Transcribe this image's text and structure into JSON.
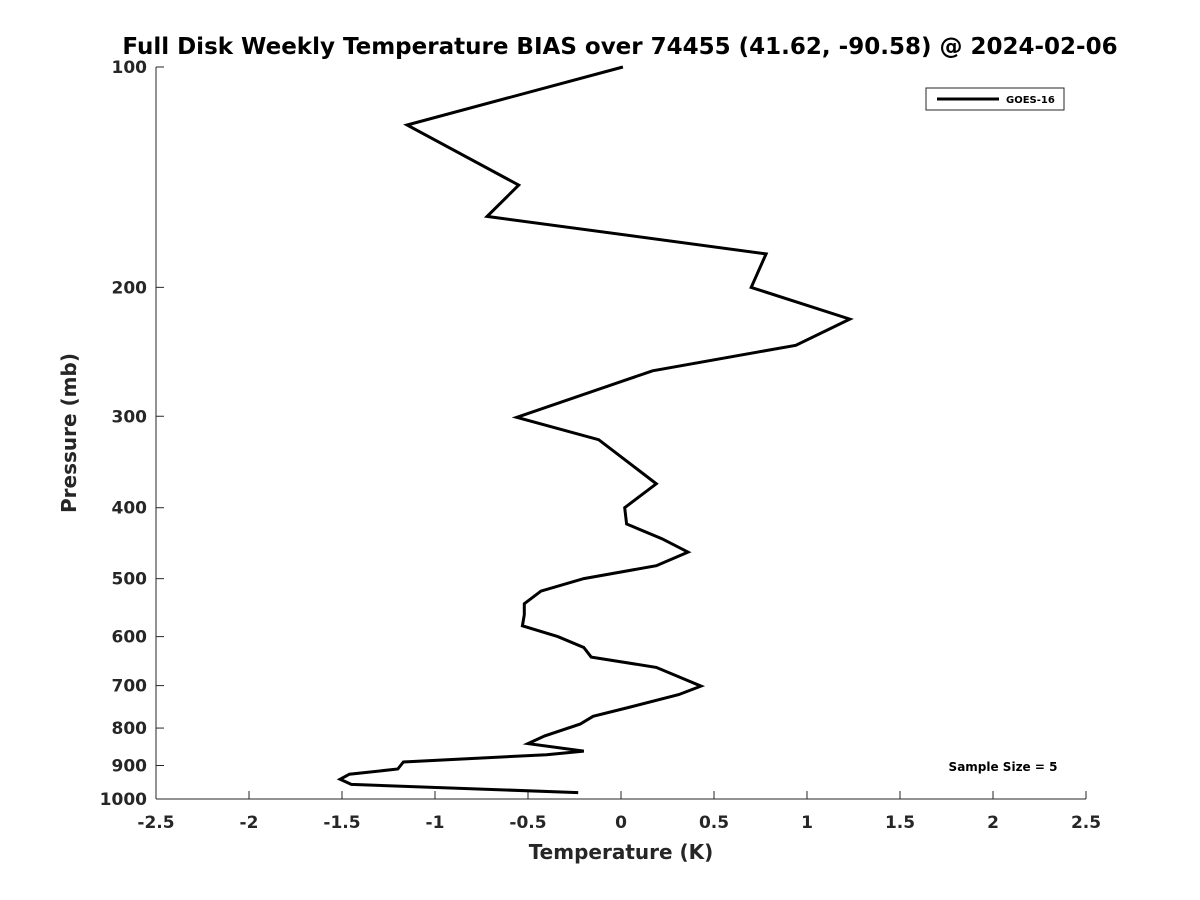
{
  "chart_data": {
    "type": "line",
    "title": "Full Disk Weekly Temperature BIAS over 74455 (41.62, -90.58) @ 2024-02-06",
    "xlabel": "Temperature (K)",
    "ylabel": "Pressure (mb)",
    "xlim": [
      -2.5,
      2.5
    ],
    "ylim": [
      100,
      1000
    ],
    "y_scale": "log",
    "y_reversed": true,
    "grid": false,
    "legend_position": "top-right",
    "x_ticks": [
      "-2.5",
      "-2",
      "-1.5",
      "-1",
      "-0.5",
      "0",
      "0.5",
      "1",
      "1.5",
      "2",
      "2.5"
    ],
    "x_tick_values": [
      -2.5,
      -2,
      -1.5,
      -1,
      -0.5,
      0,
      0.5,
      1,
      1.5,
      2,
      2.5
    ],
    "y_ticks": [
      "100",
      "200",
      "300",
      "400",
      "500",
      "600",
      "700",
      "800",
      "900",
      "1000"
    ],
    "y_tick_values": [
      100,
      200,
      300,
      400,
      500,
      600,
      700,
      800,
      900,
      1000
    ],
    "series": [
      {
        "name": "GOES-16",
        "color": "#000000",
        "points": [
          {
            "x": 0.01,
            "y": 100
          },
          {
            "x": -1.15,
            "y": 120
          },
          {
            "x": -0.55,
            "y": 145
          },
          {
            "x": -0.72,
            "y": 160
          },
          {
            "x": 0.78,
            "y": 180
          },
          {
            "x": 0.7,
            "y": 200
          },
          {
            "x": 1.23,
            "y": 221
          },
          {
            "x": 0.94,
            "y": 240
          },
          {
            "x": 0.17,
            "y": 260
          },
          {
            "x": -0.56,
            "y": 301
          },
          {
            "x": -0.12,
            "y": 323
          },
          {
            "x": 0.06,
            "y": 350
          },
          {
            "x": 0.19,
            "y": 371
          },
          {
            "x": 0.02,
            "y": 400
          },
          {
            "x": 0.03,
            "y": 421
          },
          {
            "x": 0.22,
            "y": 441
          },
          {
            "x": 0.36,
            "y": 460
          },
          {
            "x": 0.19,
            "y": 480
          },
          {
            "x": -0.2,
            "y": 500
          },
          {
            "x": -0.43,
            "y": 520
          },
          {
            "x": -0.52,
            "y": 541
          },
          {
            "x": -0.52,
            "y": 560
          },
          {
            "x": -0.53,
            "y": 580
          },
          {
            "x": -0.34,
            "y": 600
          },
          {
            "x": -0.2,
            "y": 621
          },
          {
            "x": -0.16,
            "y": 640
          },
          {
            "x": 0.19,
            "y": 661
          },
          {
            "x": 0.43,
            "y": 701
          },
          {
            "x": 0.31,
            "y": 720
          },
          {
            "x": 0.04,
            "y": 750
          },
          {
            "x": -0.15,
            "y": 771
          },
          {
            "x": -0.22,
            "y": 790
          },
          {
            "x": -0.41,
            "y": 820
          },
          {
            "x": -0.5,
            "y": 840
          },
          {
            "x": -0.2,
            "y": 860
          },
          {
            "x": -0.4,
            "y": 870
          },
          {
            "x": -1.17,
            "y": 890
          },
          {
            "x": -1.2,
            "y": 910
          },
          {
            "x": -1.46,
            "y": 925
          },
          {
            "x": -1.51,
            "y": 940
          },
          {
            "x": -1.45,
            "y": 955
          },
          {
            "x": -0.23,
            "y": 980
          }
        ]
      }
    ],
    "annotations": [
      "Sample Size = 5"
    ]
  }
}
